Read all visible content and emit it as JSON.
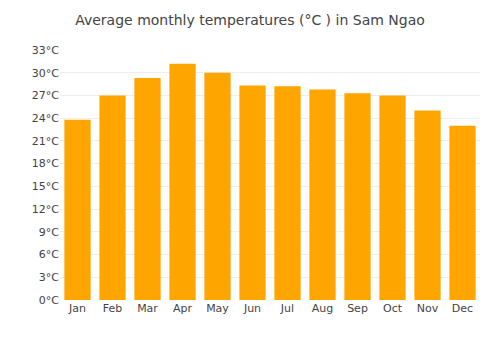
{
  "chart_data": {
    "type": "bar",
    "title": "Average monthly temperatures (°C ) in Sam Ngao",
    "categories": [
      "Jan",
      "Feb",
      "Mar",
      "Apr",
      "May",
      "Jun",
      "Jul",
      "Aug",
      "Sep",
      "Oct",
      "Nov",
      "Dec"
    ],
    "values": [
      23.8,
      27.0,
      29.3,
      31.2,
      30.0,
      28.3,
      28.2,
      27.8,
      27.3,
      27.0,
      25.0,
      23.0
    ],
    "color": "#FFA500",
    "ylim": [
      0,
      33
    ],
    "yticks": [
      {
        "value": 0,
        "label": "0°C"
      },
      {
        "value": 3,
        "label": "3°C"
      },
      {
        "value": 6,
        "label": "6°C"
      },
      {
        "value": 9,
        "label": "9°C"
      },
      {
        "value": 12,
        "label": "12°C"
      },
      {
        "value": 15,
        "label": "15°C"
      },
      {
        "value": 18,
        "label": "18°C"
      },
      {
        "value": 21,
        "label": "21°C"
      },
      {
        "value": 24,
        "label": "24°C"
      },
      {
        "value": 27,
        "label": "27°C"
      },
      {
        "value": 30,
        "label": "30°C"
      },
      {
        "value": 33,
        "label": "33°C"
      }
    ],
    "grid": true
  }
}
